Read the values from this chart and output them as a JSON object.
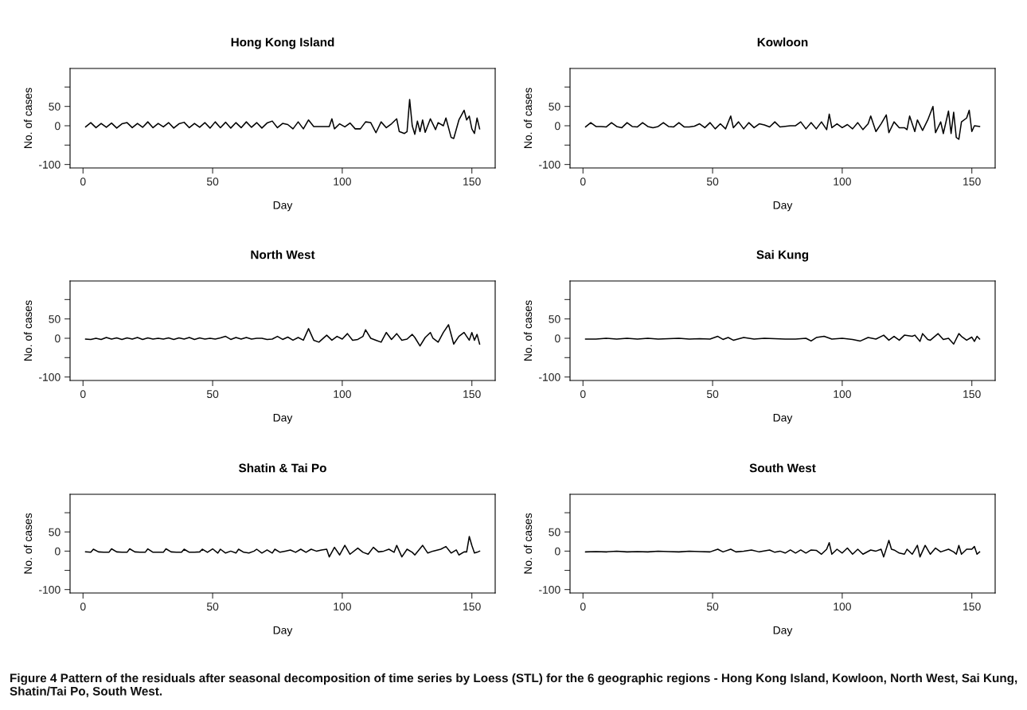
{
  "chart_data": [
    {
      "type": "line",
      "title": "Hong Kong Island",
      "xlabel": "Day",
      "ylabel": "No. of cases",
      "color": "#000000",
      "xlim": [
        -5,
        159
      ],
      "ylim": [
        -109,
        148
      ],
      "xticks": [
        0,
        50,
        100,
        150
      ],
      "yticks": [
        {
          "value": -100,
          "label": "-100"
        },
        {
          "value": -50,
          "label": null
        },
        0,
        50,
        {
          "value": 100,
          "label": null
        }
      ],
      "x": [
        1,
        3,
        5,
        7,
        9,
        11,
        13,
        15,
        17,
        19,
        21,
        23,
        25,
        27,
        29,
        31,
        33,
        35,
        37,
        39,
        41,
        43,
        45,
        47,
        49,
        51,
        53,
        55,
        57,
        59,
        61,
        63,
        65,
        67,
        69,
        71,
        73,
        75,
        77,
        79,
        81,
        83,
        85,
        87,
        89,
        91,
        95,
        96,
        97,
        99,
        101,
        103,
        105,
        107,
        109,
        111,
        113,
        115,
        117,
        119,
        121,
        122,
        124,
        125,
        126,
        127,
        128,
        129,
        130,
        131,
        132,
        134,
        136,
        137,
        139,
        140,
        142,
        143,
        145,
        147,
        148,
        149,
        150,
        151,
        152,
        153
      ],
      "values": [
        -3,
        8,
        -5,
        6,
        -4,
        7,
        -6,
        5,
        8,
        -5,
        6,
        -4,
        10,
        -5,
        6,
        -3,
        8,
        -6,
        5,
        9,
        -5,
        6,
        -4,
        8,
        -6,
        10,
        -5,
        9,
        -6,
        8,
        -5,
        10,
        -4,
        8,
        -6,
        7,
        12,
        -5,
        6,
        3,
        -8,
        10,
        -8,
        15,
        -2,
        -2,
        -2,
        18,
        -8,
        5,
        -3,
        7,
        -8,
        -8,
        10,
        8,
        -18,
        10,
        -5,
        5,
        18,
        -15,
        -20,
        -15,
        68,
        0,
        -22,
        12,
        -15,
        15,
        -17,
        18,
        -10,
        8,
        0,
        20,
        -30,
        -33,
        15,
        40,
        15,
        25,
        -8,
        -20,
        20,
        -8
      ],
      "annotations": [
        "Figure 4 Pattern of the residuals after seasonal decomposition of time series by Loess (STL) for the 6 geographic regions - Hong Kong Island, Kowloon, North West, Sai Kung, Shatin/Tai Po, South West."
      ]
    },
    {
      "type": "line",
      "title": "Kowloon",
      "xlabel": "Day",
      "ylabel": "No. of cases",
      "color": "#000000",
      "xlim": [
        -5,
        159
      ],
      "ylim": [
        -109,
        148
      ],
      "xticks": [
        0,
        50,
        100,
        150
      ],
      "yticks": [
        {
          "value": -100,
          "label": "-100"
        },
        {
          "value": -50,
          "label": null
        },
        0,
        50,
        {
          "value": 100,
          "label": null
        }
      ],
      "x": [
        1,
        3,
        5,
        7,
        9,
        11,
        13,
        15,
        17,
        19,
        21,
        23,
        25,
        27,
        29,
        31,
        33,
        35,
        37,
        39,
        41,
        43,
        45,
        47,
        49,
        51,
        53,
        55,
        57,
        58,
        60,
        62,
        64,
        66,
        68,
        70,
        72,
        74,
        76,
        80,
        82,
        84,
        86,
        88,
        90,
        92,
        94,
        95,
        96,
        98,
        100,
        102,
        104,
        106,
        108,
        110,
        111,
        113,
        115,
        117,
        118,
        120,
        122,
        124,
        125,
        126,
        128,
        129,
        131,
        133,
        135,
        136,
        138,
        139,
        141,
        142,
        143,
        144,
        145,
        146,
        148,
        149,
        150,
        151,
        153
      ],
      "values": [
        -3,
        8,
        -2,
        -2,
        -3,
        8,
        -2,
        -5,
        8,
        -2,
        -3,
        8,
        -2,
        -5,
        -2,
        8,
        -2,
        -3,
        8,
        -3,
        -3,
        -1,
        5,
        -5,
        8,
        -8,
        5,
        -8,
        25,
        -5,
        10,
        -8,
        8,
        -5,
        5,
        2,
        -3,
        10,
        -3,
        0,
        0,
        10,
        -8,
        8,
        -8,
        10,
        -10,
        30,
        -5,
        5,
        -5,
        3,
        -8,
        8,
        -10,
        5,
        25,
        -15,
        5,
        28,
        -18,
        10,
        -5,
        -5,
        -10,
        25,
        -15,
        15,
        -12,
        15,
        50,
        -18,
        10,
        -20,
        38,
        -20,
        35,
        -30,
        -35,
        10,
        20,
        40,
        -15,
        0,
        -2
      ]
    },
    {
      "type": "line",
      "title": "North West",
      "xlabel": "Day",
      "ylabel": "No. of cases",
      "color": "#000000",
      "xlim": [
        -5,
        159
      ],
      "ylim": [
        -109,
        148
      ],
      "xticks": [
        0,
        50,
        100,
        150
      ],
      "yticks": [
        {
          "value": -100,
          "label": "-100"
        },
        {
          "value": -50,
          "label": null
        },
        0,
        50,
        {
          "value": 100,
          "label": null
        }
      ],
      "x": [
        1,
        3,
        5,
        7,
        9,
        11,
        13,
        15,
        17,
        19,
        21,
        23,
        25,
        27,
        29,
        31,
        33,
        35,
        37,
        39,
        41,
        43,
        45,
        47,
        49,
        51,
        53,
        55,
        57,
        59,
        61,
        63,
        65,
        67,
        69,
        71,
        73,
        75,
        77,
        79,
        81,
        83,
        85,
        87,
        89,
        91,
        94,
        96,
        98,
        100,
        102,
        104,
        106,
        108,
        109,
        111,
        113,
        115,
        117,
        119,
        121,
        123,
        125,
        127,
        128,
        130,
        132,
        134,
        135,
        137,
        139,
        141,
        143,
        145,
        147,
        148,
        149,
        150,
        151,
        152,
        153
      ],
      "values": [
        -2,
        -3,
        0,
        -3,
        2,
        -2,
        1,
        -3,
        1,
        -2,
        2,
        -3,
        1,
        -2,
        0,
        -2,
        1,
        -3,
        1,
        -2,
        2,
        -3,
        1,
        -2,
        0,
        -2,
        1,
        5,
        -3,
        2,
        -2,
        2,
        -2,
        0,
        0,
        -3,
        -2,
        5,
        -3,
        3,
        -5,
        2,
        -5,
        25,
        -5,
        -10,
        8,
        -5,
        5,
        -2,
        12,
        -5,
        -3,
        5,
        22,
        0,
        -5,
        -10,
        15,
        -3,
        12,
        -5,
        -2,
        10,
        2,
        -20,
        2,
        15,
        0,
        -10,
        15,
        35,
        -15,
        5,
        15,
        5,
        -5,
        15,
        -5,
        10,
        -15
      ]
    },
    {
      "type": "line",
      "title": "Sai Kung",
      "xlabel": "Day",
      "ylabel": "No. of cases",
      "color": "#000000",
      "xlim": [
        -5,
        159
      ],
      "ylim": [
        -109,
        148
      ],
      "xticks": [
        0,
        50,
        100,
        150
      ],
      "yticks": [
        {
          "value": -100,
          "label": "-100"
        },
        {
          "value": -50,
          "label": null
        },
        0,
        50,
        {
          "value": 100,
          "label": null
        }
      ],
      "x": [
        1,
        5,
        9,
        13,
        17,
        21,
        25,
        29,
        33,
        37,
        41,
        45,
        49,
        52,
        54,
        56,
        58,
        62,
        66,
        70,
        74,
        78,
        82,
        86,
        88,
        90,
        93,
        96,
        100,
        104,
        107,
        110,
        113,
        116,
        118,
        120,
        122,
        124,
        127,
        128,
        130,
        131,
        133,
        134,
        137,
        139,
        141,
        143,
        145,
        146,
        148,
        150,
        151,
        152,
        153
      ],
      "values": [
        -2,
        -2,
        0,
        -2,
        0,
        -2,
        0,
        -2,
        -1,
        0,
        -2,
        -1,
        -2,
        5,
        -3,
        2,
        -5,
        2,
        -2,
        0,
        -1,
        -2,
        -2,
        0,
        -7,
        2,
        5,
        -2,
        0,
        -3,
        -7,
        2,
        -2,
        8,
        -5,
        5,
        -5,
        8,
        5,
        8,
        -8,
        12,
        -3,
        -5,
        12,
        -3,
        0,
        -15,
        12,
        5,
        -5,
        3,
        -8,
        5,
        -2
      ]
    },
    {
      "type": "line",
      "title": "Shatin & Tai Po",
      "xlabel": "Day",
      "ylabel": "No. of cases",
      "color": "#000000",
      "xlim": [
        -5,
        159
      ],
      "ylim": [
        -109,
        148
      ],
      "xticks": [
        0,
        50,
        100,
        150
      ],
      "yticks": [
        {
          "value": -100,
          "label": "-100"
        },
        {
          "value": -50,
          "label": null
        },
        0,
        50,
        {
          "value": 100,
          "label": null
        }
      ],
      "x": [
        1,
        3,
        4,
        6,
        8,
        10,
        11,
        13,
        15,
        17,
        18,
        20,
        22,
        24,
        25,
        27,
        29,
        31,
        32,
        34,
        36,
        38,
        39,
        41,
        43,
        45,
        46,
        48,
        50,
        52,
        53,
        55,
        57,
        59,
        60,
        62,
        64,
        66,
        67,
        69,
        71,
        73,
        74,
        76,
        78,
        80,
        82,
        84,
        86,
        88,
        90,
        92,
        94,
        95,
        97,
        99,
        101,
        103,
        106,
        108,
        110,
        112,
        114,
        116,
        118,
        120,
        121,
        123,
        125,
        127,
        128,
        131,
        133,
        135,
        138,
        140,
        142,
        144,
        145,
        147,
        148,
        149,
        150,
        151,
        152,
        153
      ],
      "values": [
        -2,
        -3,
        5,
        -2,
        -3,
        -3,
        6,
        -2,
        -3,
        -3,
        6,
        -2,
        -3,
        -3,
        6,
        -3,
        -3,
        -3,
        6,
        -2,
        -3,
        -3,
        5,
        -3,
        -3,
        -2,
        5,
        -3,
        6,
        -5,
        5,
        -5,
        0,
        -5,
        5,
        -3,
        -5,
        0,
        5,
        -5,
        3,
        -5,
        5,
        -3,
        0,
        3,
        -3,
        5,
        -3,
        5,
        0,
        3,
        5,
        -15,
        10,
        -10,
        15,
        -8,
        8,
        -3,
        -8,
        10,
        -2,
        0,
        5,
        -3,
        15,
        -15,
        5,
        -3,
        -10,
        15,
        -5,
        0,
        5,
        12,
        -5,
        3,
        -10,
        -2,
        -2,
        38,
        15,
        -5,
        -3,
        0
      ]
    },
    {
      "type": "line",
      "title": "South West",
      "xlabel": "Day",
      "ylabel": "No. of cases",
      "color": "#000000",
      "xlim": [
        -5,
        159
      ],
      "ylim": [
        -109,
        148
      ],
      "xticks": [
        0,
        50,
        100,
        150
      ],
      "yticks": [
        {
          "value": -100,
          "label": "-100"
        },
        {
          "value": -50,
          "label": null
        },
        0,
        50,
        {
          "value": 100,
          "label": null
        }
      ],
      "x": [
        1,
        5,
        9,
        13,
        17,
        21,
        25,
        29,
        33,
        37,
        41,
        45,
        49,
        52,
        54,
        57,
        59,
        62,
        65,
        68,
        72,
        74,
        76,
        78,
        80,
        82,
        84,
        86,
        88,
        90,
        92,
        94,
        95,
        96,
        98,
        100,
        102,
        104,
        106,
        108,
        111,
        113,
        115,
        116,
        118,
        119,
        120,
        122,
        124,
        125,
        127,
        129,
        130,
        132,
        134,
        136,
        138,
        141,
        143,
        144,
        145,
        146,
        148,
        150,
        151,
        152,
        153
      ],
      "values": [
        -2,
        -1,
        -2,
        0,
        -2,
        -1,
        -2,
        0,
        -1,
        -2,
        0,
        -1,
        -2,
        5,
        -2,
        5,
        -2,
        0,
        3,
        -2,
        3,
        -3,
        0,
        -5,
        3,
        -5,
        3,
        -5,
        3,
        2,
        -8,
        5,
        22,
        -8,
        5,
        -5,
        8,
        -8,
        5,
        -8,
        3,
        0,
        5,
        -15,
        28,
        5,
        3,
        -5,
        -8,
        5,
        -8,
        15,
        -15,
        15,
        -8,
        8,
        -2,
        5,
        -2,
        -8,
        15,
        -8,
        5,
        5,
        12,
        -8,
        -2
      ]
    }
  ]
}
